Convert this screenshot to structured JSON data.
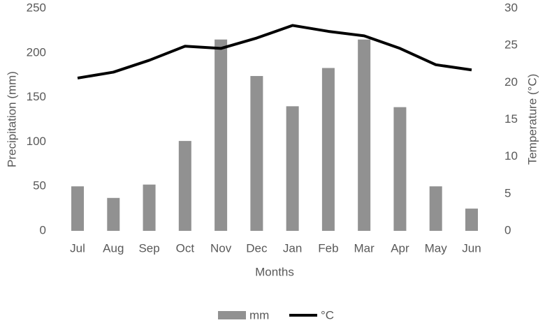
{
  "chart_data": {
    "type": "bar_line",
    "categories": [
      "Jul",
      "Aug",
      "Sep",
      "Oct",
      "Nov",
      "Dec",
      "Jan",
      "Feb",
      "Mar",
      "Apr",
      "May",
      "Jun"
    ],
    "series": [
      {
        "name": "mm",
        "color": "#919191",
        "type": "bar",
        "values": [
          50,
          37,
          52,
          101,
          215,
          174,
          140,
          183,
          215,
          139,
          50,
          25
        ]
      },
      {
        "name": "°C",
        "color": "#000000",
        "type": "line",
        "axis": "y2",
        "values": [
          20.6,
          21.4,
          23.0,
          24.9,
          24.6,
          26.0,
          27.7,
          26.9,
          26.3,
          24.6,
          22.4,
          21.7
        ]
      }
    ],
    "ylabel": "Precipitation (mm)",
    "y2label": "Temperature (°C)",
    "xlabel": "Months",
    "ylim": [
      0,
      250
    ],
    "yticks": [
      0,
      50,
      100,
      150,
      200,
      250
    ],
    "y2lim": [
      0,
      30
    ],
    "y2ticks": [
      0,
      5,
      10,
      15,
      20,
      25,
      30
    ],
    "legend": "bottom"
  }
}
